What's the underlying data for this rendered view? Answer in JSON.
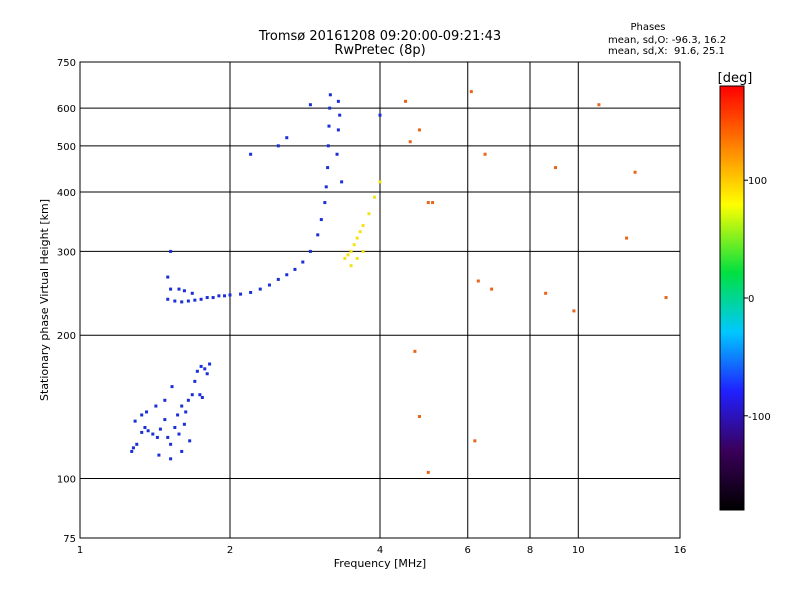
{
  "chart_data": {
    "type": "scatter",
    "title": "Tromsø 20161208 09:20:00-09:21:43",
    "subtitle": "RwPretec (8p)",
    "xlabel": "Frequency [MHz]",
    "ylabel": "Stationary phase Virtual Height [km]",
    "x_scale": "log",
    "y_scale": "log",
    "xlim": [
      1,
      16
    ],
    "ylim": [
      75,
      750
    ],
    "x_ticks": [
      1,
      2,
      4,
      6,
      8,
      10,
      16
    ],
    "x_tick_labels": [
      "1",
      "2",
      "4",
      "6",
      "8",
      "10",
      "16"
    ],
    "y_ticks": [
      75,
      100,
      200,
      300,
      400,
      500,
      600,
      750
    ],
    "y_tick_labels": [
      "75",
      "100",
      "200",
      "300",
      "400",
      "500",
      "600",
      "750"
    ],
    "grid": true,
    "stats": {
      "heading": "Phases",
      "line_o": "mean, sd,O: -96.3, 16.2",
      "line_x": "mean, sd,X:  91.6, 25.1"
    },
    "colorbar": {
      "label": "[deg]",
      "range": [
        -180,
        180
      ],
      "ticks": [
        100,
        0,
        -100
      ],
      "tick_labels": [
        "100",
        "0",
        "-100"
      ],
      "palette": [
        "#000000",
        "#3a005a",
        "#2020ff",
        "#00c8ff",
        "#00e040",
        "#ffff00",
        "#ff8000",
        "#ff0000"
      ]
    },
    "series": [
      {
        "description": "lower E/Es region trace",
        "color": "#1a2fd6",
        "points": [
          [
            1.27,
            114
          ],
          [
            1.28,
            116
          ],
          [
            1.3,
            118
          ],
          [
            1.33,
            125
          ],
          [
            1.35,
            128
          ],
          [
            1.37,
            126
          ],
          [
            1.4,
            124
          ],
          [
            1.43,
            122
          ],
          [
            1.45,
            127
          ],
          [
            1.48,
            133
          ],
          [
            1.5,
            122
          ],
          [
            1.52,
            118
          ],
          [
            1.55,
            128
          ],
          [
            1.57,
            136
          ],
          [
            1.6,
            142
          ],
          [
            1.63,
            138
          ],
          [
            1.65,
            146
          ],
          [
            1.68,
            150
          ],
          [
            1.7,
            160
          ],
          [
            1.72,
            168
          ],
          [
            1.75,
            172
          ],
          [
            1.78,
            170
          ],
          [
            1.8,
            166
          ],
          [
            1.82,
            174
          ],
          [
            1.74,
            150
          ],
          [
            1.76,
            148
          ],
          [
            1.36,
            138
          ],
          [
            1.42,
            142
          ],
          [
            1.48,
            146
          ],
          [
            1.53,
            156
          ],
          [
            1.58,
            124
          ],
          [
            1.62,
            130
          ],
          [
            1.29,
            132
          ],
          [
            1.33,
            136
          ],
          [
            1.44,
            112
          ],
          [
            1.52,
            110
          ],
          [
            1.6,
            114
          ],
          [
            1.66,
            120
          ]
        ]
      },
      {
        "description": "F-layer trace (O-mode)",
        "color": "#1a2fd6",
        "points": [
          [
            1.5,
            238
          ],
          [
            1.55,
            236
          ],
          [
            1.6,
            235
          ],
          [
            1.65,
            236
          ],
          [
            1.7,
            237
          ],
          [
            1.75,
            238
          ],
          [
            1.8,
            240
          ],
          [
            1.85,
            240
          ],
          [
            1.9,
            242
          ],
          [
            1.95,
            242
          ],
          [
            2.0,
            243
          ],
          [
            2.1,
            244
          ],
          [
            2.2,
            246
          ],
          [
            2.3,
            250
          ],
          [
            2.4,
            255
          ],
          [
            2.5,
            262
          ],
          [
            2.6,
            268
          ],
          [
            2.7,
            275
          ],
          [
            2.8,
            285
          ],
          [
            2.9,
            300
          ],
          [
            3.0,
            325
          ],
          [
            3.05,
            350
          ],
          [
            3.1,
            380
          ],
          [
            3.12,
            410
          ],
          [
            3.14,
            450
          ],
          [
            3.15,
            500
          ],
          [
            3.16,
            550
          ],
          [
            3.17,
            600
          ],
          [
            3.18,
            640
          ],
          [
            1.52,
            250
          ],
          [
            1.5,
            265
          ],
          [
            1.52,
            300
          ],
          [
            1.58,
            250
          ],
          [
            1.62,
            248
          ],
          [
            1.68,
            245
          ],
          [
            3.3,
            620
          ],
          [
            3.32,
            580
          ],
          [
            3.3,
            540
          ],
          [
            3.28,
            480
          ],
          [
            3.35,
            420
          ],
          [
            2.2,
            480
          ],
          [
            2.5,
            500
          ],
          [
            2.6,
            520
          ],
          [
            2.9,
            610
          ],
          [
            4.0,
            580
          ]
        ]
      },
      {
        "description": "F-layer trace (X-mode)",
        "color": "#f2e21a",
        "points": [
          [
            3.4,
            290
          ],
          [
            3.45,
            295
          ],
          [
            3.5,
            300
          ],
          [
            3.55,
            310
          ],
          [
            3.6,
            320
          ],
          [
            3.65,
            330
          ],
          [
            3.7,
            340
          ],
          [
            3.8,
            360
          ],
          [
            3.9,
            390
          ],
          [
            4.0,
            420
          ],
          [
            3.5,
            280
          ],
          [
            3.6,
            290
          ],
          [
            3.7,
            300
          ]
        ]
      },
      {
        "description": "scattered noise points",
        "color": "#e8651a",
        "points": [
          [
            4.5,
            620
          ],
          [
            4.8,
            540
          ],
          [
            5.0,
            380
          ],
          [
            6.1,
            650
          ],
          [
            6.5,
            480
          ],
          [
            6.3,
            260
          ],
          [
            6.7,
            250
          ],
          [
            8.6,
            245
          ],
          [
            9.8,
            225
          ],
          [
            11.0,
            610
          ],
          [
            12.5,
            320
          ],
          [
            13.0,
            440
          ],
          [
            15.0,
            240
          ],
          [
            4.7,
            185
          ],
          [
            4.8,
            135
          ],
          [
            5.0,
            103
          ],
          [
            6.2,
            120
          ],
          [
            5.1,
            380
          ],
          [
            4.6,
            510
          ],
          [
            9.0,
            450
          ]
        ]
      }
    ]
  }
}
